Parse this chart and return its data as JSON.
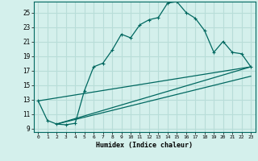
{
  "xlabel": "Humidex (Indice chaleur)",
  "bg_color": "#d4f0ec",
  "grid_color": "#b8ddd8",
  "line_color": "#006860",
  "xlim": [
    -0.5,
    23.5
  ],
  "ylim": [
    8.5,
    26.5
  ],
  "xticks": [
    0,
    1,
    2,
    3,
    4,
    5,
    6,
    7,
    8,
    9,
    10,
    11,
    12,
    13,
    14,
    15,
    16,
    17,
    18,
    19,
    20,
    21,
    22,
    23
  ],
  "yticks": [
    9,
    11,
    13,
    15,
    17,
    19,
    21,
    23,
    25
  ],
  "main_line": [
    [
      0,
      12.8
    ],
    [
      1,
      10.1
    ],
    [
      2,
      9.6
    ],
    [
      3,
      9.5
    ],
    [
      4,
      9.7
    ],
    [
      5,
      14.2
    ],
    [
      6,
      17.5
    ],
    [
      7,
      18.0
    ],
    [
      8,
      19.8
    ],
    [
      9,
      22.0
    ],
    [
      10,
      21.5
    ],
    [
      11,
      23.3
    ],
    [
      12,
      24.0
    ],
    [
      13,
      24.3
    ],
    [
      14,
      26.3
    ],
    [
      15,
      26.5
    ],
    [
      16,
      25.0
    ],
    [
      17,
      24.2
    ],
    [
      18,
      22.5
    ],
    [
      19,
      19.5
    ],
    [
      20,
      21.0
    ],
    [
      21,
      19.5
    ],
    [
      22,
      19.3
    ],
    [
      23,
      17.5
    ]
  ],
  "line2": [
    [
      0,
      12.8
    ],
    [
      23,
      17.5
    ]
  ],
  "line3": [
    [
      2,
      9.6
    ],
    [
      23,
      16.2
    ]
  ],
  "line4": [
    [
      2,
      9.6
    ],
    [
      23,
      17.5
    ]
  ]
}
